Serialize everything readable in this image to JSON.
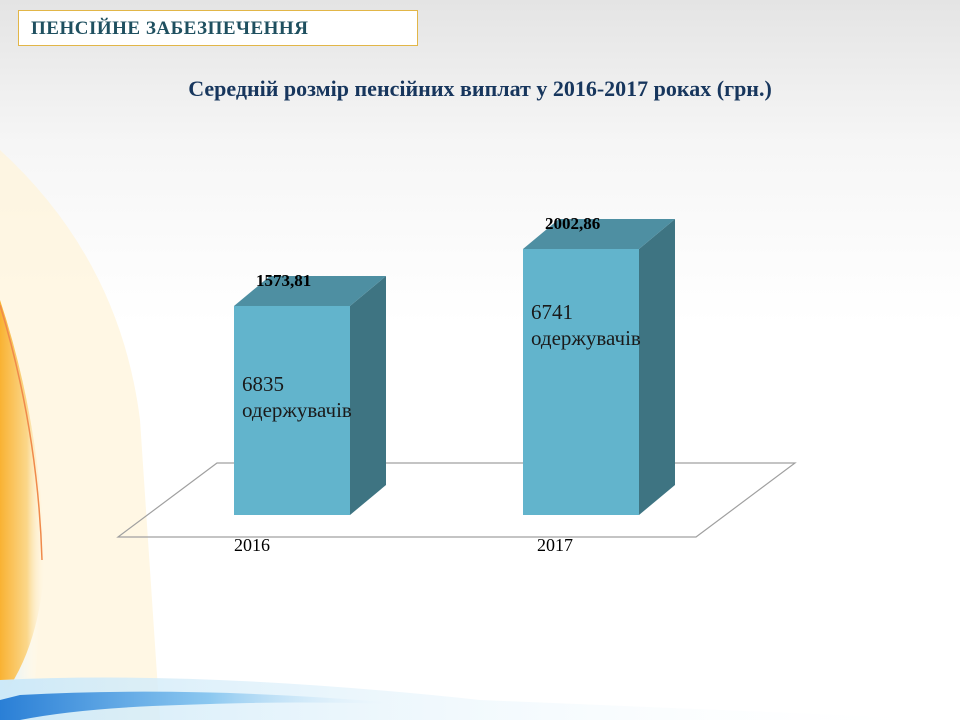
{
  "section_label": "ПЕНСІЙНЕ ЗАБЕЗПЕЧЕННЯ",
  "colors": {
    "bar_front": "#62b4cc",
    "bar_top": "#4e8fa2",
    "bar_side": "#3e7482",
    "title": "#17365d",
    "section_text": "#1f5060",
    "section_border": "#e2b648"
  },
  "chart_data": {
    "type": "bar",
    "title": "Середній розмір пенсійних виплат у 2016-2017 роках (грн.)",
    "categories": [
      "2016",
      "2017"
    ],
    "values": [
      1573.81,
      2002.86
    ],
    "value_labels": [
      "1573,81",
      "2002,86"
    ],
    "bar_annotations": [
      {
        "count": "6835",
        "text": "одержувачів"
      },
      {
        "count": "6741",
        "text": "одержувачів"
      }
    ],
    "style": "3d-column",
    "ylim": [
      0,
      2002.86
    ],
    "grid": false,
    "legend": "none"
  }
}
